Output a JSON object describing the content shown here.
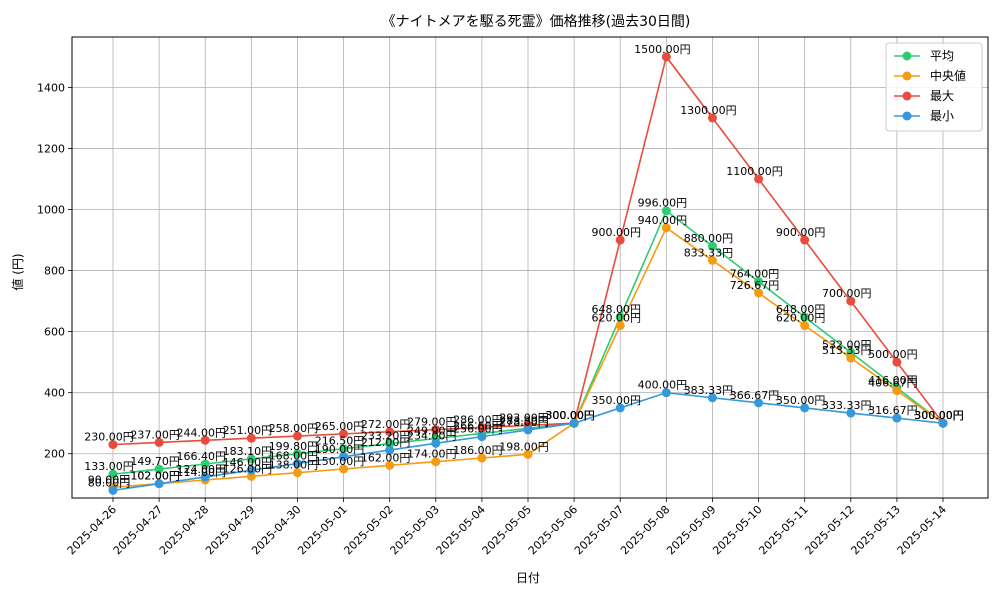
{
  "chart_data": {
    "type": "line",
    "title": "《ナイトメアを駆る死霊》価格推移(過去30日間)",
    "xlabel": "日付",
    "ylabel": "値 (円)",
    "grid": true,
    "legend_position": "top-right",
    "x": [
      "2025-04-26",
      "2025-04-27",
      "2025-04-28",
      "2025-04-29",
      "2025-04-30",
      "2025-05-01",
      "2025-05-02",
      "2025-05-03",
      "2025-05-04",
      "2025-05-05",
      "2025-05-06",
      "2025-05-07",
      "2025-05-08",
      "2025-05-09",
      "2025-05-10",
      "2025-05-11",
      "2025-05-12",
      "2025-05-13",
      "2025-05-14"
    ],
    "ylim": [
      55,
      1565
    ],
    "yticks": [
      200,
      400,
      600,
      800,
      1000,
      1200,
      1400
    ],
    "series": [
      {
        "name": "平均",
        "color": "#2ecc71",
        "values": [
          133,
          149.7,
          166.4,
          183.1,
          199.8,
          216.5,
          233.2,
          249.9,
          266.6,
          283.3,
          300,
          648,
          996,
          880,
          764,
          648,
          532,
          416,
          300
        ]
      },
      {
        "name": "中央値",
        "color": "#f39c12",
        "values": [
          90,
          102,
          114,
          126,
          138,
          150,
          162,
          174,
          186,
          198,
          300,
          620,
          940,
          833.33,
          726.67,
          620,
          513.33,
          406.67,
          300
        ]
      },
      {
        "name": "最大",
        "color": "#e74c3c",
        "values": [
          230,
          237,
          244,
          251,
          258,
          265,
          272,
          279,
          286,
          293,
          300,
          900,
          1500,
          1300,
          1100,
          900,
          700,
          500,
          300
        ]
      },
      {
        "name": "最小",
        "color": "#3498db",
        "values": [
          80,
          102,
          124,
          146,
          168,
          190,
          212,
          234,
          256,
          278,
          300,
          350,
          400,
          383.33,
          366.67,
          350,
          333.33,
          316.67,
          300
        ]
      }
    ],
    "value_suffix": "円"
  }
}
